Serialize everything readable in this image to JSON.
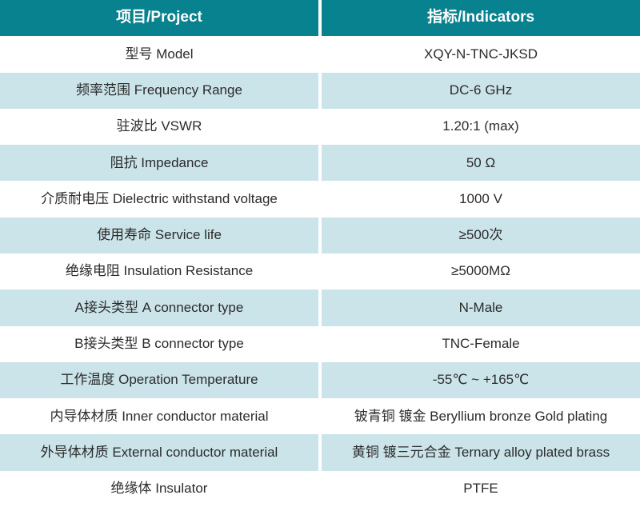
{
  "colors": {
    "header_bg": "#08828F",
    "alt_row_bg": "#CBE4E9",
    "row_bg": "#FFFFFF",
    "divider": "#FFFFFF",
    "text": "#2B2B2B",
    "header_text": "#FFFFFF"
  },
  "table": {
    "header": {
      "project": "项目/Project",
      "indicators": "指标/Indicators"
    },
    "rows": [
      {
        "project": "型号 Model",
        "indicator": "XQY-N-TNC-JKSD"
      },
      {
        "project": "频率范围 Frequency Range",
        "indicator": "DC-6 GHz"
      },
      {
        "project": "驻波比 VSWR",
        "indicator": "1.20:1 (max)"
      },
      {
        "project": "阻抗 Impedance",
        "indicator": "50 Ω"
      },
      {
        "project": "介质耐电压 Dielectric withstand voltage",
        "indicator": "1000 V"
      },
      {
        "project": "使用寿命 Service life",
        "indicator": "≥500次"
      },
      {
        "project": "绝缘电阻 Insulation Resistance",
        "indicator": "≥5000MΩ"
      },
      {
        "project": "A接头类型 A connector type",
        "indicator": "N-Male"
      },
      {
        "project": "B接头类型 B connector type",
        "indicator": "TNC-Female"
      },
      {
        "project": "工作温度 Operation Temperature",
        "indicator": "-55℃ ~ +165℃"
      },
      {
        "project": "内导体材质 Inner conductor material",
        "indicator": "铍青铜 镀金 Beryllium bronze Gold plating"
      },
      {
        "project": "外导体材质 External conductor material",
        "indicator": "黄铜 镀三元合金 Ternary alloy plated brass"
      },
      {
        "project": "绝缘体 Insulator",
        "indicator": "PTFE"
      }
    ]
  }
}
